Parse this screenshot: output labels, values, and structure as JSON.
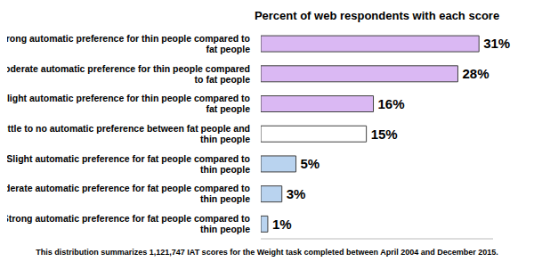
{
  "chart_data": {
    "type": "bar",
    "orientation": "horizontal",
    "title": "Percent of web respondents with each score",
    "categories": [
      "Strong automatic preference for thin people compared to fat people",
      "Moderate automatic preference for thin people compared to fat people",
      "Slight automatic preference for thin people compared to fat people",
      "Little to no automatic preference between fat people and thin people",
      "Slight automatic preference for fat people compared to thin people",
      "Moderate automatic preference for fat people compared to thin people",
      "Strong automatic preference for fat people compared to thin people"
    ],
    "values": [
      31,
      28,
      16,
      15,
      5,
      3,
      1
    ],
    "value_labels": [
      "31%",
      "28%",
      "16%",
      "15%",
      "5%",
      "3%",
      "1%"
    ],
    "colors": [
      "#dab8f3",
      "#dab8f3",
      "#dab8f3",
      "#ffffff",
      "#b9d3ef",
      "#b9d3ef",
      "#b9d3ef"
    ],
    "data_labels": true,
    "tick_labels": false,
    "grid": false,
    "xlim": [
      0,
      33
    ],
    "annotations": [
      "This distribution summarizes 1,121,747 IAT scores for the Weight task completed between April 2004 and December 2015."
    ]
  }
}
